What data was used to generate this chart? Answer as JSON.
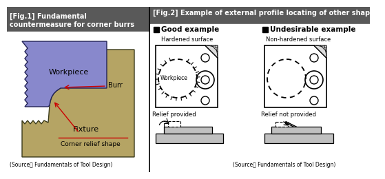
{
  "fig1_title_line1": "[Fig.1] Fundamental",
  "fig1_title_line2": "countermeasure for corner burrs",
  "fig2_title": "[Fig.2] Example of external profile locating of other shapes",
  "fig1_source": "(Source： Fundamentals of Tool Design)",
  "fig2_source": "(Source： Fundamentals of Tool Design)",
  "header1_bg": "#595959",
  "header2_bg": "#595959",
  "header_text_color": "#ffffff",
  "fixture_color": "#b5a464",
  "fixture_outline": "#3a3a1a",
  "workpiece_color": "#8888cc",
  "workpiece_outline": "#222255",
  "good_label": "Good example",
  "bad_label": "Undesirable example",
  "hardened_label": "Hardened surface",
  "non_hardened_label": "Non-hardened surface",
  "relief_provided_label": "Relief provided",
  "relief_not_provided_label": "Relief not provided",
  "workpiece_label": "Workpiece",
  "burr_label": "Burr",
  "fixture_label": "Fixture",
  "corner_relief_label": "Corner relief shape",
  "plate_color": "#c0c0c0",
  "plate_dark": "#909090"
}
